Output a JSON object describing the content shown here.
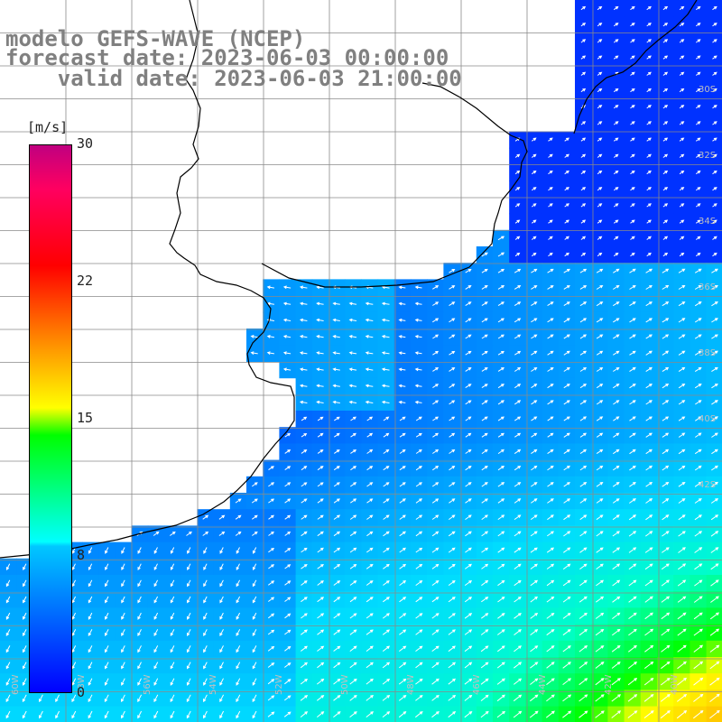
{
  "title": {
    "line1": "modelo GEFS-WAVE (NCEP)",
    "line2": "forecast date: 2023-06-03 00:00:00",
    "line3": "    valid date: 2023-06-03 21:00:00"
  },
  "colorbar": {
    "unit": "[m/s]",
    "ticks": [
      "30",
      "22",
      "15",
      "8",
      "0"
    ],
    "range": [
      0,
      30
    ],
    "colors": [
      "#0000ff",
      "#00c8ff",
      "#00ffff",
      "#00ff00",
      "#ffff00",
      "#ffa000",
      "#ff0000",
      "#c00080"
    ]
  },
  "map": {
    "field": "wind speed with direction arrows",
    "land_color": "#ffffff",
    "coast_color": "#000000",
    "grid_color": "#808080",
    "arrow_color": "#ffffff",
    "lat_labels": [
      "30S",
      "32S",
      "34S",
      "36S",
      "38S",
      "40S",
      "42S"
    ],
    "lon_labels": [
      "60W",
      "58W",
      "56W",
      "54W",
      "52W",
      "50W",
      "48W",
      "46W",
      "44W",
      "42W",
      "40W"
    ]
  }
}
